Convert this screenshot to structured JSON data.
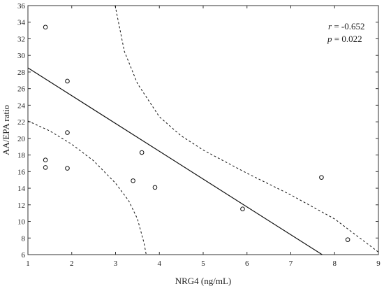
{
  "chart_data": {
    "type": "scatter",
    "xlabel": "NRG4 (ng/mL)",
    "ylabel": "AA/EPA ratio",
    "xlim": [
      1,
      9
    ],
    "ylim": [
      6,
      36
    ],
    "x_ticks": [
      1,
      2,
      3,
      4,
      5,
      6,
      7,
      8,
      9
    ],
    "y_ticks": [
      6,
      8,
      10,
      12,
      14,
      16,
      18,
      20,
      22,
      24,
      26,
      28,
      30,
      32,
      34,
      36
    ],
    "grid": false,
    "points": [
      {
        "x": 1.4,
        "y": 33.4
      },
      {
        "x": 1.4,
        "y": 17.4
      },
      {
        "x": 1.4,
        "y": 16.5
      },
      {
        "x": 1.9,
        "y": 26.9
      },
      {
        "x": 1.9,
        "y": 20.7
      },
      {
        "x": 1.9,
        "y": 16.4
      },
      {
        "x": 3.4,
        "y": 14.9
      },
      {
        "x": 3.6,
        "y": 18.3
      },
      {
        "x": 3.9,
        "y": 14.1
      },
      {
        "x": 5.9,
        "y": 11.5
      },
      {
        "x": 7.7,
        "y": 15.3
      },
      {
        "x": 8.3,
        "y": 7.8
      }
    ],
    "regression": {
      "intercept": 31.85,
      "slope": -3.35
    },
    "ci_upper": [
      {
        "x": 2.99,
        "y": 36
      },
      {
        "x": 3.2,
        "y": 30.5
      },
      {
        "x": 3.5,
        "y": 26.6
      },
      {
        "x": 4.0,
        "y": 22.6
      },
      {
        "x": 4.5,
        "y": 20.3
      },
      {
        "x": 5.0,
        "y": 18.6
      },
      {
        "x": 6.0,
        "y": 15.8
      },
      {
        "x": 7.0,
        "y": 13.2
      },
      {
        "x": 8.0,
        "y": 10.3
      },
      {
        "x": 9.0,
        "y": 6.3
      }
    ],
    "ci_lower": [
      {
        "x": 1.0,
        "y": 22.1
      },
      {
        "x": 1.5,
        "y": 20.9
      },
      {
        "x": 2.0,
        "y": 19.3
      },
      {
        "x": 2.5,
        "y": 17.3
      },
      {
        "x": 3.0,
        "y": 14.6
      },
      {
        "x": 3.3,
        "y": 12.5
      },
      {
        "x": 3.5,
        "y": 10.3
      },
      {
        "x": 3.65,
        "y": 7.4
      },
      {
        "x": 3.7,
        "y": 6.0
      }
    ],
    "annotations": [
      {
        "label": "r",
        "text": " = -0.652"
      },
      {
        "label": "p",
        "text": " = 0.022"
      }
    ]
  },
  "colors": {
    "axis": "#333333",
    "line": "#111111",
    "marker": "#111111"
  }
}
